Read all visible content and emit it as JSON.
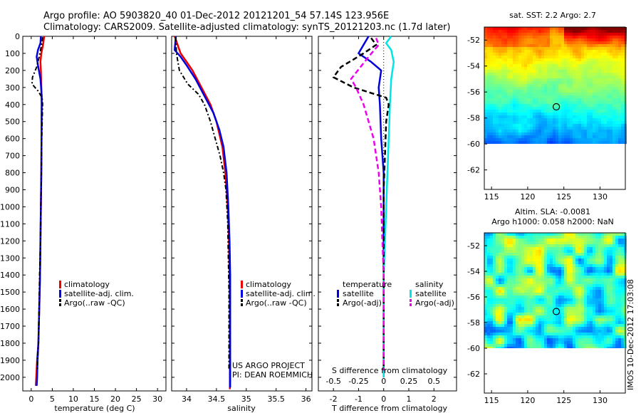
{
  "header": {
    "line1": "Argo profile: AO 5903820_40 01-Dec-2012 20121201_54 57.14S 123.956E",
    "line2": "Climatology: CARS2009. Satellite-adjusted climatology: synTS_20121203.nc (1.7d later)"
  },
  "colors": {
    "climatology": "#ee0000",
    "satellite_adj": "#0000dd",
    "argo": "#000000",
    "sal_satellite": "#00e5e5",
    "sal_argo": "#ee00ee"
  },
  "legends": {
    "temp": [
      "climatology",
      "satellite-adj. clim.",
      "Argo(..raw -QC)"
    ],
    "sal": [
      "climatology",
      "satellite-adj. clim.",
      "Argo(..raw -QC)"
    ],
    "diff": {
      "temperature_head": "temperature",
      "salinity_head": "salinity",
      "temperature_items": [
        "satellite",
        "Argo(-adj)"
      ],
      "salinity_items": [
        "satellite",
        "Argo(-adj)"
      ]
    }
  },
  "credits": {
    "line1": "US ARGO PROJECT",
    "line2": "PI: DEAN ROEMMICH"
  },
  "maps": {
    "sst_title": "sat. SST: 2.2 Argo: 2.7",
    "sla_title1": "Altim. SLA: -0.0081",
    "sla_title2": "Argo h1000: 0.058 h2000: NaN",
    "yticks": [
      "-52",
      "-54",
      "-56",
      "-58",
      "-60",
      "-62"
    ],
    "xticks": [
      "115",
      "120",
      "125",
      "130"
    ],
    "lat_range": [
      -63.5,
      -51
    ],
    "lon_range": [
      114,
      133.5
    ],
    "data_lat_bottom": -60,
    "marker": {
      "lat": -57.14,
      "lon": 123.956
    },
    "imos_stamp": "IMOS 10-Dec-2012 17:03:08"
  },
  "chart_data": [
    {
      "type": "line",
      "panel": "temperature",
      "xlabel": "temperature (deg C)",
      "ylabel": "",
      "xlim": [
        -2,
        32
      ],
      "ylim": [
        2080,
        0
      ],
      "xticks": [
        0,
        5,
        10,
        15,
        20,
        25,
        30
      ],
      "yticks": [
        0,
        100,
        200,
        300,
        400,
        500,
        600,
        700,
        800,
        900,
        1000,
        1100,
        1200,
        1300,
        1400,
        1500,
        1600,
        1700,
        1800,
        1900,
        2000
      ],
      "series": [
        {
          "name": "climatology",
          "x": [
            3.1,
            2.8,
            2.4,
            2.2,
            2.3,
            2.4,
            2.5,
            2.45,
            2.4,
            2.3,
            2.2,
            2.1,
            1.9,
            1.7,
            1.4,
            1.2,
            1.1
          ],
          "y": [
            0,
            50,
            100,
            150,
            200,
            300,
            400,
            600,
            800,
            1000,
            1200,
            1400,
            1600,
            1800,
            1900,
            2000,
            2050
          ]
        },
        {
          "name": "satellite-adj. clim.",
          "x": [
            2.3,
            2.2,
            1.6,
            1.3,
            1.6,
            2.2,
            2.5,
            2.45,
            2.4,
            2.3,
            2.2,
            2.1,
            1.9,
            1.7,
            1.5,
            1.4,
            1.3
          ],
          "y": [
            0,
            40,
            80,
            120,
            170,
            250,
            350,
            600,
            800,
            1000,
            1200,
            1400,
            1600,
            1800,
            1900,
            2000,
            2050
          ]
        },
        {
          "name": "Argo(..raw -QC)",
          "x": [
            2.7,
            2.6,
            2.3,
            1.9,
            1.3,
            0.3,
            0.2,
            1.6,
            2.6,
            2.7,
            2.6,
            2.5,
            2.4,
            2.3,
            2.2,
            2.0,
            1.85,
            1.7,
            1.5,
            1.45
          ],
          "y": [
            5,
            30,
            70,
            120,
            180,
            240,
            280,
            320,
            360,
            400,
            500,
            600,
            800,
            1000,
            1200,
            1400,
            1600,
            1800,
            1900,
            1960
          ]
        }
      ]
    },
    {
      "type": "line",
      "panel": "salinity",
      "xlabel": "salinity",
      "ylabel": "",
      "xlim": [
        33.75,
        36.1
      ],
      "ylim": [
        2080,
        0
      ],
      "xticks": [
        34,
        34.5,
        35,
        35.5,
        36
      ],
      "series": [
        {
          "name": "climatology",
          "x": [
            33.8,
            33.9,
            34.0,
            34.1,
            34.25,
            34.4,
            34.5,
            34.6,
            34.65,
            34.69,
            34.71,
            34.72,
            34.725,
            34.725,
            34.725,
            34.725,
            34.725,
            34.725
          ],
          "y": [
            0,
            100,
            150,
            200,
            300,
            400,
            500,
            650,
            800,
            1000,
            1200,
            1400,
            1600,
            1800,
            1900,
            2000,
            2050,
            2070
          ]
        },
        {
          "name": "satellite-adj. clim.",
          "x": [
            33.82,
            33.8,
            33.85,
            33.9,
            34.0,
            34.15,
            34.3,
            34.45,
            34.55,
            34.62,
            34.67,
            34.7,
            34.72,
            34.73,
            34.73,
            34.73,
            34.73,
            34.73
          ],
          "y": [
            0,
            80,
            100,
            120,
            170,
            250,
            350,
            450,
            550,
            650,
            800,
            1000,
            1200,
            1400,
            1600,
            1800,
            2000,
            2060
          ]
        },
        {
          "name": "Argo(..raw -QC)",
          "x": [
            33.82,
            33.83,
            33.88,
            34.02,
            34.2,
            34.3,
            34.4,
            34.48,
            34.56,
            34.62,
            34.66,
            34.69,
            34.7,
            34.71,
            34.71,
            34.71
          ],
          "y": [
            5,
            100,
            200,
            280,
            340,
            400,
            500,
            600,
            700,
            800,
            900,
            1100,
            1300,
            1500,
            1700,
            1960
          ]
        }
      ]
    },
    {
      "type": "line",
      "panel": "difference",
      "xlabel": "T difference from climatology",
      "xlabel_top": "S difference from climatology",
      "xlim": [
        -2.6,
        2.9
      ],
      "ylim": [
        2080,
        0
      ],
      "xticks": [
        -2,
        -1,
        0,
        1,
        2
      ],
      "top_ticks": [
        "-0.5",
        "-0.25",
        "0",
        "0.25",
        "0.5"
      ],
      "top_tick_values": [
        -2,
        -1,
        0,
        1,
        2
      ],
      "series": [
        {
          "name": "temperature satellite",
          "x": [
            -0.6,
            -1.0,
            -0.5,
            -0.1,
            -0.2,
            -0.15,
            -0.1,
            0.0,
            0.0,
            0.0,
            0.0,
            0.0,
            0.0,
            0.0,
            0.0
          ],
          "y": [
            0,
            100,
            150,
            200,
            300,
            400,
            600,
            800,
            1000,
            1200,
            1400,
            1600,
            1800,
            1900,
            2000
          ]
        },
        {
          "name": "satellite",
          "x": [
            0.3,
            0.1,
            0.3,
            0.4,
            0.3,
            0.25,
            0.2,
            0.15,
            0.1,
            0.05,
            0.0,
            0.0,
            0.0,
            0.0
          ],
          "y": [
            0,
            40,
            80,
            150,
            250,
            400,
            600,
            800,
            1000,
            1200,
            1400,
            1600,
            1800,
            2000
          ]
        },
        {
          "name": "temperature Argo(-adj)",
          "x": [
            -0.5,
            -0.3,
            -0.8,
            -1.7,
            -2.0,
            -1.2,
            0.1,
            0.2,
            0.1,
            0.05,
            0.0,
            0.0,
            0.0,
            0.0,
            0.0
          ],
          "y": [
            10,
            50,
            100,
            180,
            240,
            300,
            360,
            400,
            500,
            700,
            900,
            1100,
            1300,
            1500,
            1960
          ]
        },
        {
          "name": "salinity Argo(-adj)",
          "x": [
            -0.3,
            -0.2,
            -0.6,
            -1.3,
            -1.1,
            -0.8,
            -0.4,
            -0.2,
            -0.1,
            -0.05,
            0.0,
            0.0,
            0.0
          ],
          "y": [
            10,
            50,
            120,
            250,
            300,
            400,
            600,
            800,
            1000,
            1200,
            1400,
            1700,
            1960
          ]
        }
      ]
    }
  ]
}
